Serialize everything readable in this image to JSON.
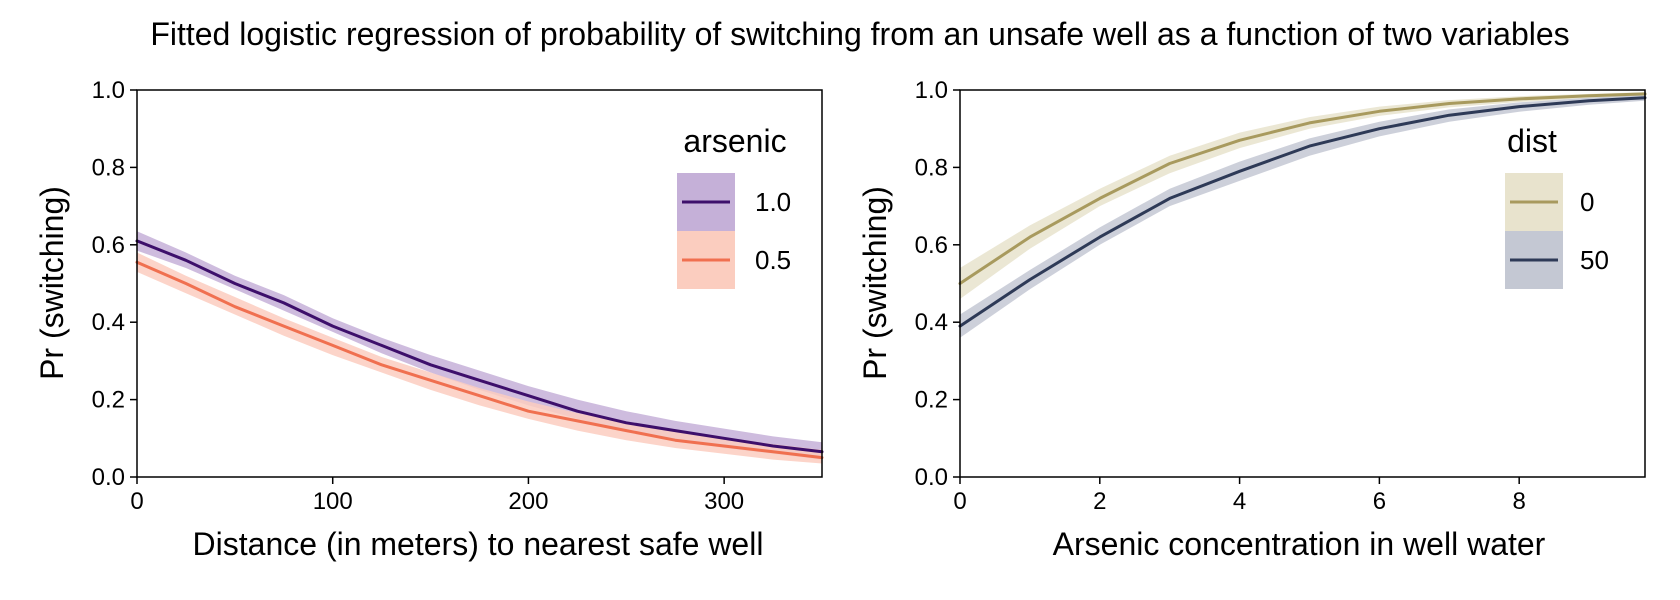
{
  "figure": {
    "title": "Fitted logistic regression of probability of switching from an unsafe well as a function of two variables"
  },
  "chart_data": [
    {
      "type": "line",
      "xlabel": "Distance (in meters) to nearest safe well",
      "ylabel": "Pr (switching)",
      "xlim": [
        0,
        350
      ],
      "ylim": [
        0,
        1
      ],
      "xticks": [
        0,
        100,
        200,
        300
      ],
      "yticks": [
        0.0,
        0.2,
        0.4,
        0.6,
        0.8,
        1.0
      ],
      "xtick_labels": [
        "0",
        "100",
        "200",
        "300"
      ],
      "ytick_labels": [
        "0.0",
        "0.2",
        "0.4",
        "0.6",
        "0.8",
        "1.0"
      ],
      "grid": false,
      "legend": {
        "title": "arsenic",
        "placement": "top-right"
      },
      "series": [
        {
          "name": "1.0",
          "color": "#3d0f6b",
          "band_color": "#c5b0d8",
          "x": [
            0,
            25,
            50,
            75,
            100,
            125,
            150,
            175,
            200,
            225,
            250,
            275,
            300,
            325,
            350
          ],
          "y": [
            0.61,
            0.56,
            0.5,
            0.45,
            0.39,
            0.34,
            0.29,
            0.25,
            0.21,
            0.17,
            0.14,
            0.12,
            0.1,
            0.08,
            0.065
          ],
          "ci_low": [
            0.585,
            0.54,
            0.485,
            0.43,
            0.375,
            0.32,
            0.27,
            0.225,
            0.185,
            0.15,
            0.12,
            0.095,
            0.075,
            0.06,
            0.045
          ],
          "ci_high": [
            0.635,
            0.58,
            0.52,
            0.47,
            0.41,
            0.36,
            0.315,
            0.275,
            0.235,
            0.2,
            0.17,
            0.145,
            0.125,
            0.105,
            0.09
          ]
        },
        {
          "name": "0.5",
          "color": "#f07050",
          "band_color": "#fbcdbf",
          "x": [
            0,
            25,
            50,
            75,
            100,
            125,
            150,
            175,
            200,
            225,
            250,
            275,
            300,
            325,
            350
          ],
          "y": [
            0.555,
            0.5,
            0.44,
            0.39,
            0.34,
            0.29,
            0.25,
            0.21,
            0.17,
            0.145,
            0.12,
            0.095,
            0.08,
            0.065,
            0.05
          ],
          "ci_low": [
            0.53,
            0.475,
            0.42,
            0.365,
            0.315,
            0.27,
            0.225,
            0.185,
            0.15,
            0.12,
            0.095,
            0.075,
            0.06,
            0.045,
            0.035
          ],
          "ci_high": [
            0.58,
            0.52,
            0.465,
            0.41,
            0.36,
            0.31,
            0.27,
            0.23,
            0.195,
            0.165,
            0.14,
            0.12,
            0.1,
            0.085,
            0.07
          ]
        }
      ]
    },
    {
      "type": "line",
      "xlabel": "Arsenic concentration in well water",
      "ylabel": "Pr (switching)",
      "xlim": [
        0,
        9.8
      ],
      "ylim": [
        0,
        1
      ],
      "xticks": [
        0,
        2,
        4,
        6,
        8
      ],
      "yticks": [
        0.0,
        0.2,
        0.4,
        0.6,
        0.8,
        1.0
      ],
      "xtick_labels": [
        "0",
        "2",
        "4",
        "6",
        "8"
      ],
      "ytick_labels": [
        "0.0",
        "0.2",
        "0.4",
        "0.6",
        "0.8",
        "1.0"
      ],
      "grid": false,
      "legend": {
        "title": "dist",
        "placement": "top-right"
      },
      "series": [
        {
          "name": "0",
          "color": "#a89a5e",
          "band_color": "#e8e3cd",
          "x": [
            0,
            1,
            2,
            3,
            4,
            5,
            6,
            7,
            8,
            9,
            9.8
          ],
          "y": [
            0.5,
            0.62,
            0.72,
            0.81,
            0.87,
            0.915,
            0.945,
            0.965,
            0.977,
            0.985,
            0.99
          ],
          "ci_low": [
            0.46,
            0.59,
            0.7,
            0.785,
            0.85,
            0.9,
            0.933,
            0.955,
            0.969,
            0.979,
            0.985
          ],
          "ci_high": [
            0.54,
            0.65,
            0.745,
            0.83,
            0.89,
            0.93,
            0.957,
            0.974,
            0.984,
            0.99,
            0.994
          ]
        },
        {
          "name": "50",
          "color": "#2e3a57",
          "band_color": "#c4c8d3",
          "x": [
            0,
            1,
            2,
            3,
            4,
            5,
            6,
            7,
            8,
            9,
            9.8
          ],
          "y": [
            0.39,
            0.51,
            0.62,
            0.72,
            0.79,
            0.855,
            0.9,
            0.935,
            0.957,
            0.972,
            0.98
          ],
          "ci_low": [
            0.36,
            0.485,
            0.6,
            0.7,
            0.765,
            0.83,
            0.88,
            0.918,
            0.944,
            0.962,
            0.972
          ],
          "ci_high": [
            0.42,
            0.535,
            0.645,
            0.745,
            0.815,
            0.875,
            0.918,
            0.95,
            0.968,
            0.98,
            0.987
          ]
        }
      ]
    }
  ]
}
